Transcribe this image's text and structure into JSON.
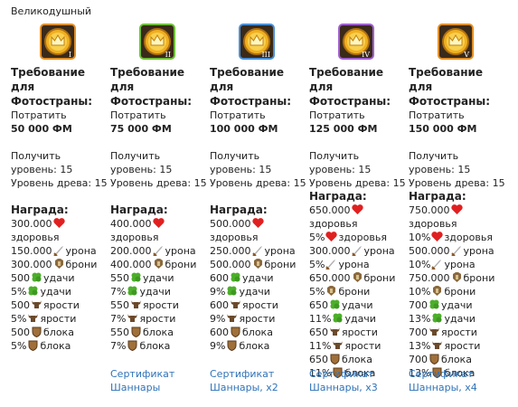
{
  "header": {
    "title": "Великодушный"
  },
  "columns": [
    {
      "badge": "I",
      "requirement": "Требование для Фотостраны:",
      "action": "Потратить",
      "cost": "50 000 ФМ",
      "level": "Получить уровень: 15",
      "tree": "Уровень древа: 15",
      "reward_title": "Награда:",
      "rewards": [
        {
          "amount": "300.000",
          "label": "здоровья"
        },
        {
          "amount": "150.000",
          "label": "урона"
        },
        {
          "amount": "300.000",
          "label": "брони"
        },
        {
          "amount": "500",
          "label": "удачи"
        },
        {
          "amount": "5%",
          "label": "удачи"
        },
        {
          "amount": "500",
          "label": "ярости"
        },
        {
          "amount": "5%",
          "label": "ярости"
        },
        {
          "amount": "500",
          "label": "блока"
        },
        {
          "amount": "5%",
          "label": "блока"
        }
      ]
    },
    {
      "badge": "II",
      "requirement": "Требование для Фотостраны:",
      "action": "Потратить",
      "cost": "75 000 ФМ",
      "level": "Получить уровень: 15",
      "tree": "Уровень древа: 15",
      "reward_title": "Награда:",
      "rewards": [
        {
          "amount": "400.000",
          "label": "здоровья"
        },
        {
          "amount": "200.000",
          "label": "урона"
        },
        {
          "amount": "400.000",
          "label": "брони"
        },
        {
          "amount": "550",
          "label": "удачи"
        },
        {
          "amount": "7%",
          "label": "удачи"
        },
        {
          "amount": "550",
          "label": "ярости"
        },
        {
          "amount": "7%",
          "label": "ярости"
        },
        {
          "amount": "550",
          "label": "блока"
        },
        {
          "amount": "7%",
          "label": "блока"
        }
      ],
      "certificate": "Сертификат Шаннары"
    },
    {
      "badge": "III",
      "requirement": "Требование для Фотостраны:",
      "action": "Потратить",
      "cost": "100 000 ФМ",
      "level": "Получить уровень: 15",
      "tree": "Уровень древа: 15",
      "reward_title": "Награда:",
      "rewards": [
        {
          "amount": "500.000",
          "label": "здоровья"
        },
        {
          "amount": "250.000",
          "label": "урона"
        },
        {
          "amount": "500.000",
          "label": "брони"
        },
        {
          "amount": "600",
          "label": "удачи"
        },
        {
          "amount": "9%",
          "label": "удачи"
        },
        {
          "amount": "600",
          "label": "ярости"
        },
        {
          "amount": "9%",
          "label": "ярости"
        },
        {
          "amount": "600",
          "label": "блока"
        },
        {
          "amount": "9%",
          "label": "блока"
        }
      ],
      "certificate": "Сертификат Шаннары, x2"
    },
    {
      "badge": "IV",
      "requirement": "Требование для Фотостраны:",
      "action": "Потратить",
      "cost": "125 000 ФМ",
      "level": "Получить уровень: 15",
      "tree": "Уровень древа: 15",
      "reward_title": "Награда:",
      "rewards": [
        {
          "amount": "650.000",
          "label": "здоровья"
        },
        {
          "amount": "5%",
          "label": "здоровья"
        },
        {
          "amount": "300.000",
          "label": "урона"
        },
        {
          "amount": "5%",
          "label": "урона"
        },
        {
          "amount": "650.000",
          "label": "брони"
        },
        {
          "amount": "5%",
          "label": "брони"
        },
        {
          "amount": "650",
          "label": "удачи"
        },
        {
          "amount": "11%",
          "label": "удачи"
        },
        {
          "amount": "650",
          "label": "ярости"
        },
        {
          "amount": "11%",
          "label": "ярости"
        },
        {
          "amount": "650",
          "label": "блока"
        },
        {
          "amount": "11%",
          "label": "блока"
        }
      ],
      "certificate": "Сертификат Шаннары, x3"
    },
    {
      "badge": "V",
      "requirement": "Требование для Фотостраны:",
      "action": "Потратить",
      "cost": "150 000 ФМ",
      "level": "Получить уровень: 15",
      "tree": "Уровень древа: 15",
      "reward_title": "Награда:",
      "rewards": [
        {
          "amount": "750.000",
          "label": "здоровья"
        },
        {
          "amount": "10%",
          "label": "здоровья"
        },
        {
          "amount": "500.000",
          "label": "урона"
        },
        {
          "amount": "10%",
          "label": "урона"
        },
        {
          "amount": "750.000",
          "label": "брони"
        },
        {
          "amount": "10%",
          "label": "брони"
        },
        {
          "amount": "700",
          "label": "удачи"
        },
        {
          "amount": "13%",
          "label": "удачи"
        },
        {
          "amount": "700",
          "label": "ярости"
        },
        {
          "amount": "13%",
          "label": "ярости"
        },
        {
          "amount": "700",
          "label": "блока"
        },
        {
          "amount": "13%",
          "label": "блока"
        }
      ],
      "certificate": "Сертификат Шаннары, x4"
    }
  ]
}
